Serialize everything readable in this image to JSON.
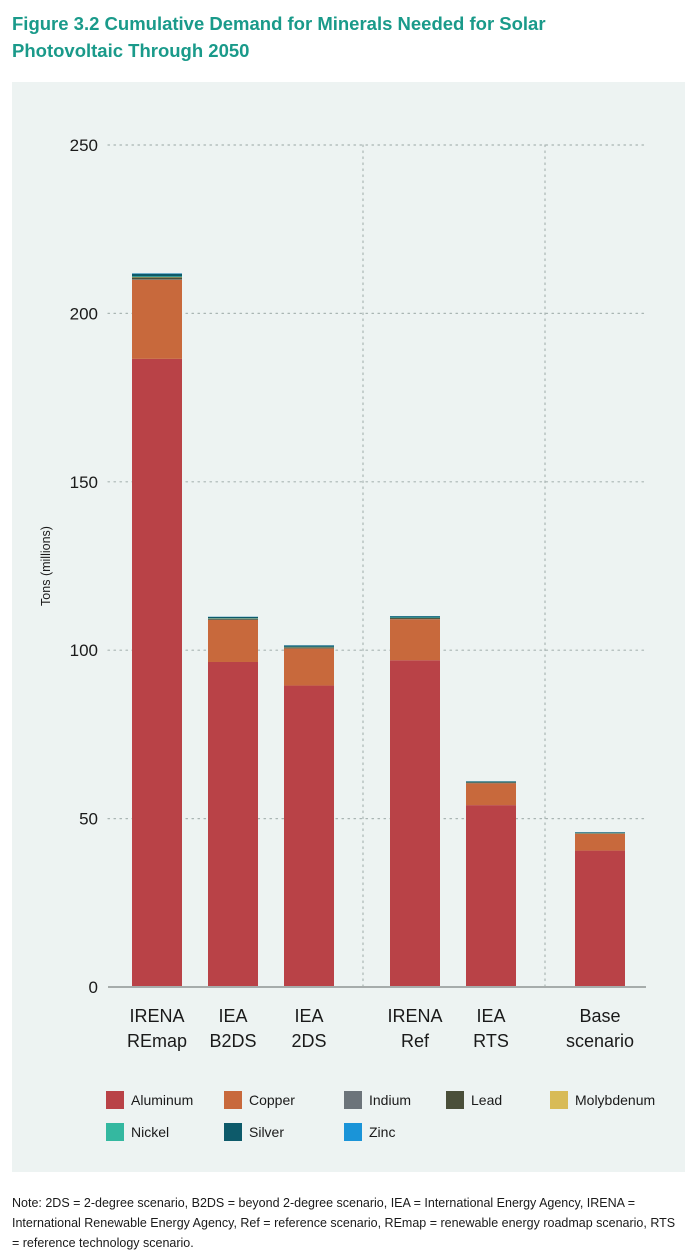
{
  "figure": {
    "title": "Figure 3.2 Cumulative Demand for Minerals Needed for Solar Photovoltaic Through 2050",
    "note": "Note: 2DS = 2-degree scenario, B2DS = beyond 2-degree scenario, IEA = International Energy Agency, IRENA = International Renewable Energy Agency, Ref = reference scenario, REmap = renewable energy roadmap scenario, RTS = reference technology scenario."
  },
  "colors": {
    "Aluminum": "#b94247",
    "Copper": "#c8693c",
    "Indium": "#6c747a",
    "Lead": "#4a4f3a",
    "Molybdenum": "#d8bb57",
    "Nickel": "#34b8a0",
    "Silver": "#0d5a6a",
    "Zinc": "#1a94d8"
  },
  "chart_data": {
    "type": "bar",
    "stacked": true,
    "ylabel": "Tons (millions)",
    "xlabel": "",
    "ylim": [
      0,
      250
    ],
    "yticks": [
      0,
      50,
      100,
      150,
      200,
      250
    ],
    "grid": true,
    "legend_position": "bottom",
    "categories": [
      {
        "lines": [
          "IRENA",
          "REmap"
        ]
      },
      {
        "lines": [
          "IEA",
          "B2DS"
        ]
      },
      {
        "lines": [
          "IEA",
          "2DS"
        ]
      },
      {
        "lines": [
          "IRENA",
          "Ref"
        ]
      },
      {
        "lines": [
          "IEA",
          "RTS"
        ]
      },
      {
        "lines": [
          "Base",
          "scenario"
        ]
      }
    ],
    "series": [
      {
        "name": "Aluminum",
        "values": [
          186.5,
          96.5,
          89.5,
          97.0,
          54.0,
          40.5
        ]
      },
      {
        "name": "Copper",
        "values": [
          23.5,
          12.5,
          11.0,
          12.2,
          6.5,
          5.0
        ]
      },
      {
        "name": "Indium",
        "values": [
          0.1,
          0.05,
          0.05,
          0.05,
          0.02,
          0.02
        ]
      },
      {
        "name": "Lead",
        "values": [
          0.6,
          0.3,
          0.3,
          0.3,
          0.2,
          0.15
        ]
      },
      {
        "name": "Molybdenum",
        "values": [
          0.1,
          0.05,
          0.05,
          0.05,
          0.02,
          0.02
        ]
      },
      {
        "name": "Nickel",
        "values": [
          0.2,
          0.1,
          0.1,
          0.1,
          0.05,
          0.05
        ]
      },
      {
        "name": "Silver",
        "values": [
          0.8,
          0.4,
          0.4,
          0.4,
          0.25,
          0.2
        ]
      },
      {
        "name": "Zinc",
        "values": [
          0.1,
          0.05,
          0.05,
          0.05,
          0.02,
          0.02
        ]
      }
    ]
  }
}
